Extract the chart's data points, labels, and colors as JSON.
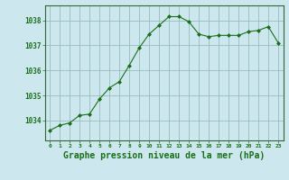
{
  "x": [
    0,
    1,
    2,
    3,
    4,
    5,
    6,
    7,
    8,
    9,
    10,
    11,
    12,
    13,
    14,
    15,
    16,
    17,
    18,
    19,
    20,
    21,
    22,
    23
  ],
  "y": [
    1033.6,
    1033.8,
    1033.9,
    1034.2,
    1034.25,
    1034.85,
    1035.3,
    1035.55,
    1036.2,
    1036.9,
    1037.45,
    1037.8,
    1038.15,
    1038.15,
    1037.95,
    1037.45,
    1037.35,
    1037.4,
    1037.4,
    1037.4,
    1037.55,
    1037.6,
    1037.75,
    1037.1
  ],
  "line_color": "#1a6e1a",
  "marker": "D",
  "marker_size": 2.0,
  "bg_color": "#cce8ee",
  "grid_color": "#99bbbb",
  "xlabel": "Graphe pression niveau de la mer (hPa)",
  "xlabel_fontsize": 7,
  "ylabel_ticks": [
    1034,
    1035,
    1036,
    1037,
    1038
  ],
  "ylim": [
    1033.2,
    1038.6
  ],
  "xlim": [
    -0.5,
    23.5
  ],
  "spine_color": "#336633"
}
